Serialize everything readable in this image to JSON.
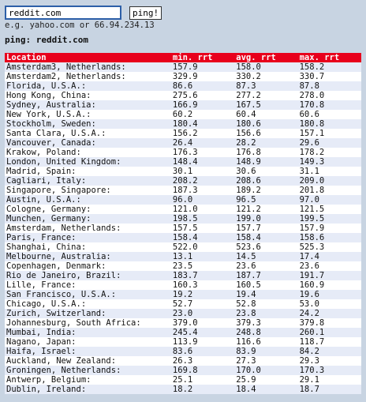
{
  "form": {
    "host_value": "reddit.com",
    "button_label": "ping!",
    "hint": "e.g. yahoo.com or 66.94.234.13"
  },
  "result_title": "ping: reddit.com",
  "table": {
    "headers": [
      "Location",
      "min. rrt",
      "avg. rrt",
      "max. rrt"
    ],
    "rows": [
      [
        "Amsterdam3, Netherlands:",
        "157.9",
        "158.0",
        "158.2"
      ],
      [
        "Amsterdam2, Netherlands:",
        "329.9",
        "330.2",
        "330.7"
      ],
      [
        "Florida, U.S.A.:",
        "86.6",
        "87.3",
        "87.8"
      ],
      [
        "Hong Kong, China:",
        "275.6",
        "277.2",
        "278.0"
      ],
      [
        "Sydney, Australia:",
        "166.9",
        "167.5",
        "170.8"
      ],
      [
        "New York, U.S.A.:",
        "60.2",
        "60.4",
        "60.6"
      ],
      [
        "Stockholm, Sweden:",
        "180.4",
        "180.6",
        "180.8"
      ],
      [
        "Santa Clara, U.S.A.:",
        "156.2",
        "156.6",
        "157.1"
      ],
      [
        "Vancouver, Canada:",
        "26.4",
        "28.2",
        "29.6"
      ],
      [
        "Krakow, Poland:",
        "176.3",
        "176.8",
        "178.2"
      ],
      [
        "London, United Kingdom:",
        "148.4",
        "148.9",
        "149.3"
      ],
      [
        "Madrid, Spain:",
        "30.1",
        "30.6",
        "31.1"
      ],
      [
        "Cagliari, Italy:",
        "208.2",
        "208.6",
        "209.0"
      ],
      [
        "Singapore, Singapore:",
        "187.3",
        "189.2",
        "201.8"
      ],
      [
        "Austin, U.S.A.:",
        "96.0",
        "96.5",
        "97.0"
      ],
      [
        "Cologne, Germany:",
        "121.0",
        "121.2",
        "121.5"
      ],
      [
        "Munchen, Germany:",
        "198.5",
        "199.0",
        "199.5"
      ],
      [
        "Amsterdam, Netherlands:",
        "157.5",
        "157.7",
        "157.9"
      ],
      [
        "Paris, France:",
        "158.4",
        "158.4",
        "158.6"
      ],
      [
        "Shanghai, China:",
        "522.0",
        "523.6",
        "525.3"
      ],
      [
        "Melbourne, Australia:",
        "13.1",
        "14.5",
        "17.4"
      ],
      [
        "Copenhagen, Denmark:",
        "23.5",
        "23.6",
        "23.6"
      ],
      [
        "Rio de Janeiro, Brazil:",
        "183.7",
        "187.7",
        "191.7"
      ],
      [
        "Lille, France:",
        "160.3",
        "160.5",
        "160.9"
      ],
      [
        "San Francisco, U.S.A.:",
        "19.2",
        "19.4",
        "19.6"
      ],
      [
        "Chicago, U.S.A.:",
        "52.7",
        "52.8",
        "53.0"
      ],
      [
        "Zurich, Switzerland:",
        "23.0",
        "23.8",
        "24.2"
      ],
      [
        "Johannesburg, South Africa:",
        "379.0",
        "379.3",
        "379.8"
      ],
      [
        "Mumbai, India:",
        "245.4",
        "248.8",
        "260.1"
      ],
      [
        "Nagano, Japan:",
        "113.9",
        "116.6",
        "118.7"
      ],
      [
        "Haifa, Israel:",
        "83.6",
        "83.9",
        "84.2"
      ],
      [
        "Auckland, New Zealand:",
        "26.3",
        "27.3",
        "29.3"
      ],
      [
        "Groningen, Netherlands:",
        "169.8",
        "170.0",
        "170.3"
      ],
      [
        "Antwerp, Belgium:",
        "25.1",
        "25.9",
        "29.1"
      ],
      [
        "Dublin, Ireland:",
        "18.2",
        "18.4",
        "18.7"
      ]
    ]
  },
  "colors": {
    "background": "#c8d4e2",
    "header": "#e8001c",
    "row_odd": "#e6ebf7",
    "row_even": "#ffffff"
  }
}
